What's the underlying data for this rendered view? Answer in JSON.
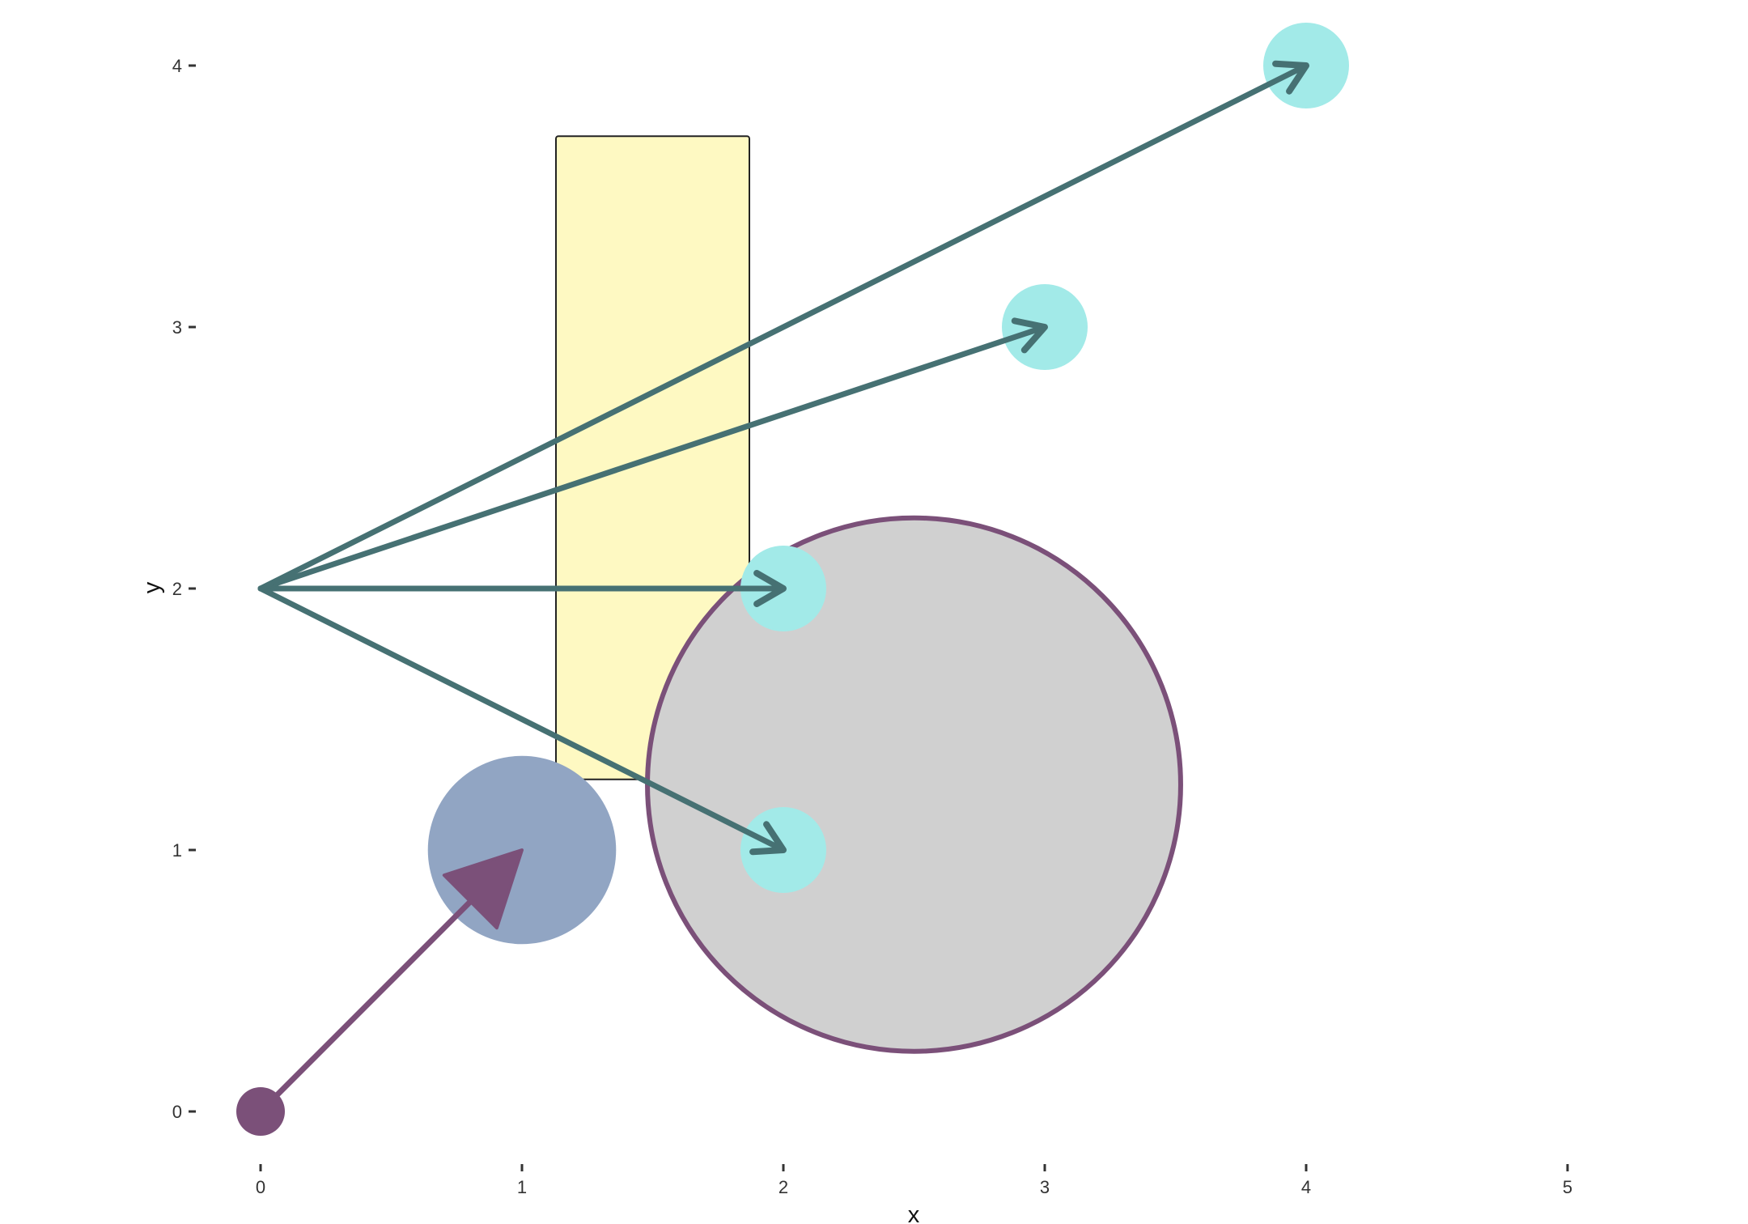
{
  "chart_data": {
    "type": "diagram",
    "xlabel": "x",
    "ylabel": "y",
    "xlim": [
      -0.35,
      5.45
    ],
    "ylim": [
      -0.1,
      4.1
    ],
    "xticks": [
      0,
      1,
      2,
      3,
      4,
      5
    ],
    "yticks": [
      0,
      1,
      2,
      3,
      4
    ],
    "grid": false,
    "colors": {
      "rect_fill": "#fef9c2",
      "rect_stroke": "#222222",
      "big_circle_fill": "#d0d0d0",
      "big_circle_stroke": "#7b5079",
      "blue_circle_fill": "#91a5c3",
      "cyan_point_fill": "#a2eae8",
      "teal_arrow": "#467173",
      "purple": "#7b5079"
    },
    "rectangle": {
      "x_min": 1.13,
      "x_max": 1.87,
      "y_min": 1.27,
      "y_max": 3.73
    },
    "big_circle": {
      "cx": 2.5,
      "cy": 1.25,
      "r": 1.02
    },
    "blue_circle": {
      "cx": 1.0,
      "cy": 1.0,
      "r": 0.36
    },
    "cyan_points": [
      {
        "x": 2,
        "y": 1
      },
      {
        "x": 2,
        "y": 2
      },
      {
        "x": 3,
        "y": 3
      },
      {
        "x": 4,
        "y": 4
      }
    ],
    "teal_arrows": [
      {
        "from": [
          0,
          2
        ],
        "to": [
          2,
          1
        ]
      },
      {
        "from": [
          0,
          2
        ],
        "to": [
          2,
          2
        ]
      },
      {
        "from": [
          0,
          2
        ],
        "to": [
          3,
          3
        ]
      },
      {
        "from": [
          0,
          2
        ],
        "to": [
          4,
          4
        ]
      }
    ],
    "purple_arrow": {
      "from": [
        0,
        0
      ],
      "to": [
        1,
        1
      ]
    },
    "purple_point": {
      "x": 0,
      "y": 0
    }
  }
}
